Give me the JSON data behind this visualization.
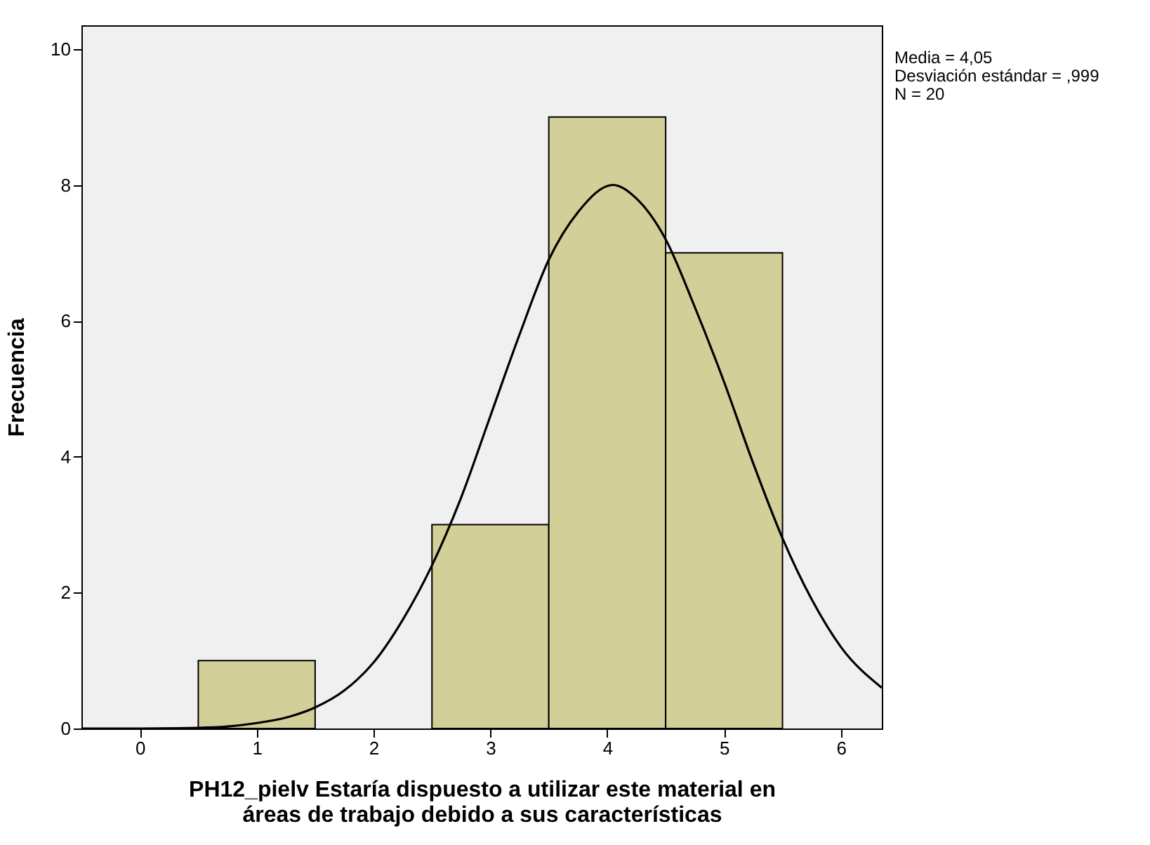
{
  "chart_data": {
    "type": "histogram",
    "xlabel": "PH12_pielv Estaría dispuesto a utilizar este material en\náreas de trabajo debido a sus características",
    "ylabel": "Frecuencia",
    "annotations": [
      "Media = 4,05",
      "Desviación estándar = ,999",
      "N = 20"
    ],
    "xlim": [
      -0.5,
      6.35
    ],
    "xticks": [
      0,
      1,
      2,
      3,
      4,
      5,
      6
    ],
    "ylim": [
      0,
      10.35
    ],
    "yticks": [
      0,
      2,
      4,
      6,
      8,
      10
    ],
    "grid": false,
    "series": [
      {
        "color": "#d3cf99",
        "bins": [
          0.5,
          1.5,
          2.5,
          3.5,
          4.5,
          5.5
        ],
        "values": [
          1,
          0,
          3,
          9,
          7
        ]
      },
      {
        "type": "line",
        "color": "#000000",
        "x": [
          -0.5,
          0,
          0.5,
          0.75,
          1,
          1.25,
          1.5,
          1.75,
          2,
          2.25,
          2.5,
          2.75,
          3,
          3.25,
          3.5,
          3.75,
          4.05,
          4.25,
          4.5,
          4.75,
          5,
          5.25,
          5.5,
          5.75,
          6,
          6.35
        ],
        "values": [
          0,
          0,
          0.01,
          0.03,
          0.08,
          0.16,
          0.31,
          0.56,
          0.97,
          1.6,
          2.4,
          3.4,
          4.6,
          5.8,
          6.9,
          7.6,
          8,
          7.8,
          7.2,
          6.2,
          5.1,
          3.9,
          2.8,
          1.9,
          1.2,
          0.6
        ]
      }
    ]
  }
}
